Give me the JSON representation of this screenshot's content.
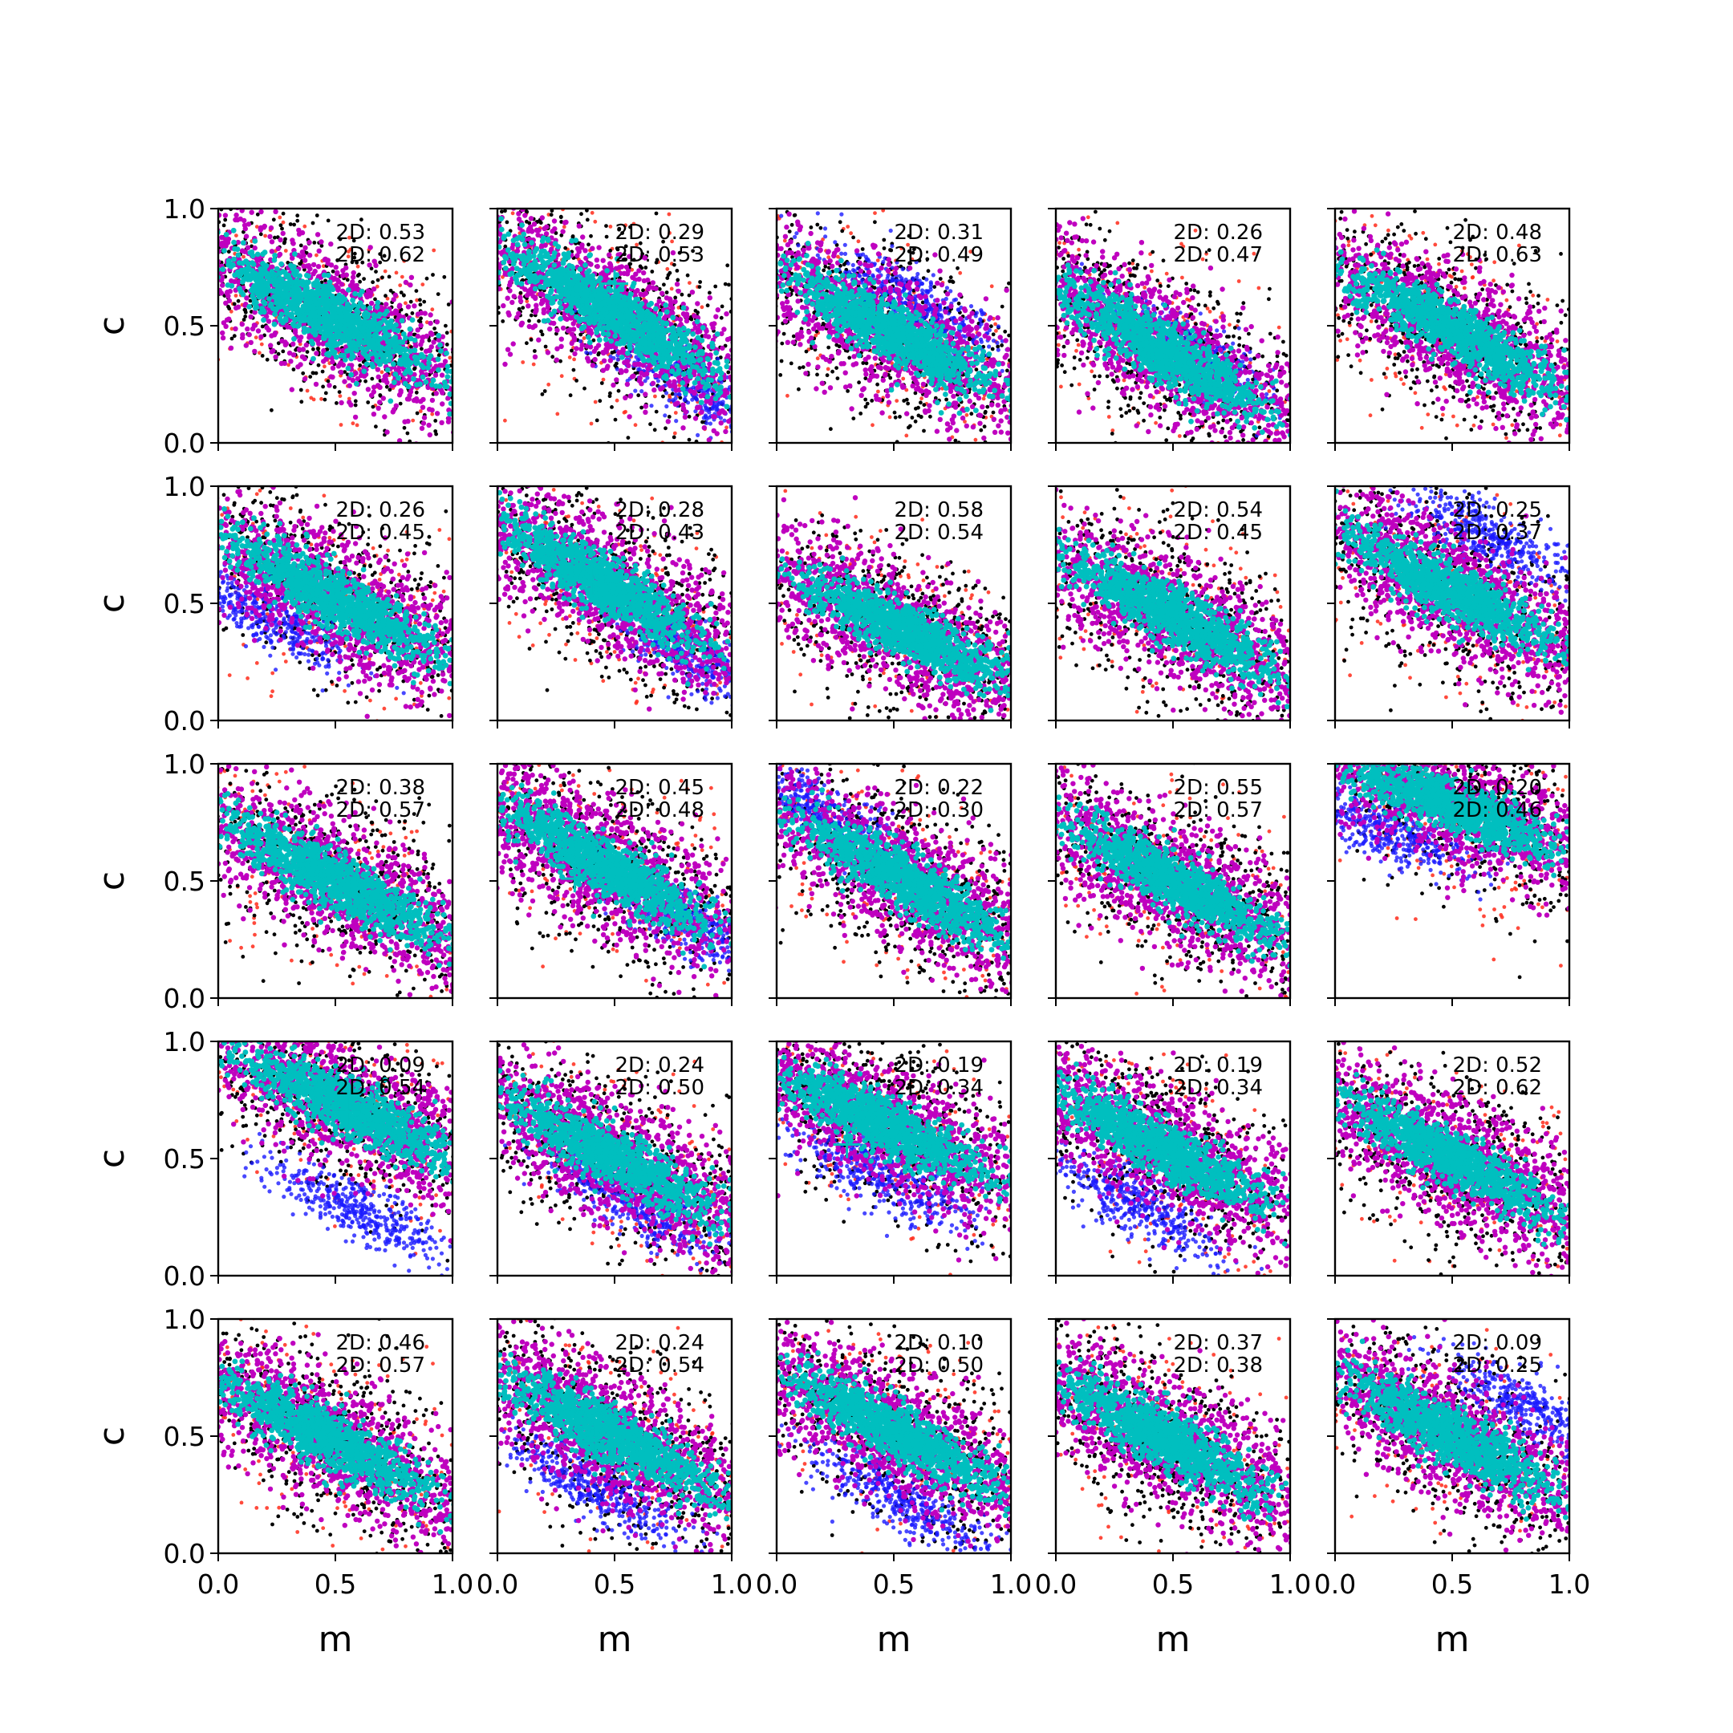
{
  "figure": {
    "xlabel": "m",
    "ylabel": "c",
    "annotation_prefix": "2D: "
  },
  "chart_data": {
    "type": "scatter",
    "grid": false,
    "rows": 5,
    "cols": 5,
    "xlim": [
      0,
      1
    ],
    "ylim": [
      0,
      1
    ],
    "xticks": [
      "0.0",
      "0.5",
      "1.0"
    ],
    "yticks": [
      "0.0",
      "0.5",
      "1.0"
    ],
    "colors": {
      "black": "#000000",
      "red": "#ff2a1a",
      "blue": "#1a1aff",
      "magenta": "#bf00bf",
      "cyan": "#00bfbf"
    },
    "panels": [
      {
        "ann": [
          "0.53",
          "0.62"
        ],
        "center": [
          0.45,
          0.55
        ],
        "slope": -0.55,
        "blue": null,
        "marker": null
      },
      {
        "ann": [
          "0.29",
          "0.53"
        ],
        "center": [
          0.5,
          0.55
        ],
        "slope": -0.6,
        "blue": [
          0.82,
          0.25
        ],
        "marker": [
          0.5,
          0.68
        ]
      },
      {
        "ann": [
          "0.31",
          "0.49"
        ],
        "center": [
          0.5,
          0.47
        ],
        "slope": -0.55,
        "blue": [
          0.6,
          0.58
        ],
        "marker": null
      },
      {
        "ann": [
          "0.26",
          "0.47"
        ],
        "center": [
          0.45,
          0.4
        ],
        "slope": -0.6,
        "blue": [
          0.55,
          0.4
        ],
        "marker": null
      },
      {
        "ann": [
          "0.48",
          "0.63"
        ],
        "center": [
          0.5,
          0.48
        ],
        "slope": -0.55,
        "blue": null,
        "marker": null
      },
      {
        "ann": [
          "0.26",
          "0.45"
        ],
        "center": [
          0.5,
          0.52
        ],
        "slope": -0.55,
        "blue": [
          0.2,
          0.45
        ],
        "marker": [
          0.48,
          0.57
        ]
      },
      {
        "ann": [
          "0.28",
          "0.43"
        ],
        "center": [
          0.45,
          0.58
        ],
        "slope": -0.6,
        "blue": [
          0.8,
          0.3
        ],
        "marker": [
          0.4,
          0.59
        ]
      },
      {
        "ann": [
          "0.58",
          "0.54"
        ],
        "center": [
          0.55,
          0.38
        ],
        "slope": -0.5,
        "blue": null,
        "marker": null
      },
      {
        "ann": [
          "0.54",
          "0.45"
        ],
        "center": [
          0.5,
          0.45
        ],
        "slope": -0.55,
        "blue": null,
        "marker": null
      },
      {
        "ann": [
          "0.25",
          "0.37"
        ],
        "center": [
          0.5,
          0.55
        ],
        "slope": -0.55,
        "blue": [
          0.65,
          0.78
        ],
        "marker": null
      },
      {
        "ann": [
          "0.38",
          "0.57"
        ],
        "center": [
          0.5,
          0.5
        ],
        "slope": -0.55,
        "blue": null,
        "marker": null
      },
      {
        "ann": [
          "0.45",
          "0.48"
        ],
        "center": [
          0.45,
          0.57
        ],
        "slope": -0.6,
        "blue": [
          0.8,
          0.33
        ],
        "marker": [
          0.33,
          0.51
        ]
      },
      {
        "ann": [
          "0.22",
          "0.30"
        ],
        "center": [
          0.55,
          0.5
        ],
        "slope": -0.6,
        "blue": [
          0.15,
          0.82
        ],
        "marker": [
          0.64,
          0.4
        ]
      },
      {
        "ann": [
          "0.55",
          "0.57"
        ],
        "center": [
          0.5,
          0.5
        ],
        "slope": -0.55,
        "blue": null,
        "marker": null
      },
      {
        "ann": [
          "0.20",
          "0.46"
        ],
        "center": [
          0.5,
          0.82
        ],
        "slope": -0.4,
        "blue": [
          0.2,
          0.72
        ],
        "marker": null
      },
      {
        "ann": [
          "0.09",
          "0.54"
        ],
        "center": [
          0.55,
          0.72
        ],
        "slope": -0.5,
        "blue": [
          0.6,
          0.28
        ],
        "marker": [
          0.55,
          0.7
        ]
      },
      {
        "ann": [
          "0.24",
          "0.50"
        ],
        "center": [
          0.5,
          0.5
        ],
        "slope": -0.55,
        "blue": [
          0.6,
          0.3
        ],
        "marker": null
      },
      {
        "ann": [
          "0.19",
          "0.34"
        ],
        "center": [
          0.45,
          0.65
        ],
        "slope": -0.5,
        "blue": [
          0.45,
          0.42
        ],
        "marker": [
          0.3,
          0.56
        ]
      },
      {
        "ann": [
          "0.19",
          "0.34"
        ],
        "center": [
          0.45,
          0.55
        ],
        "slope": -0.55,
        "blue": [
          0.35,
          0.3
        ],
        "marker": [
          0.53,
          0.43
        ]
      },
      {
        "ann": [
          "0.52",
          "0.62"
        ],
        "center": [
          0.5,
          0.5
        ],
        "slope": -0.55,
        "blue": null,
        "marker": null
      },
      {
        "ann": [
          "0.46",
          "0.57"
        ],
        "center": [
          0.45,
          0.5
        ],
        "slope": -0.55,
        "blue": null,
        "marker": null
      },
      {
        "ann": [
          "0.24",
          "0.54"
        ],
        "center": [
          0.5,
          0.5
        ],
        "slope": -0.55,
        "blue": [
          0.42,
          0.28
        ],
        "marker": [
          0.42,
          0.48
        ]
      },
      {
        "ann": [
          "0.10",
          "0.50"
        ],
        "center": [
          0.5,
          0.52
        ],
        "slope": -0.55,
        "blue": [
          0.55,
          0.22
        ],
        "marker": null
      },
      {
        "ann": [
          "0.37",
          "0.38"
        ],
        "center": [
          0.45,
          0.5
        ],
        "slope": -0.55,
        "blue": null,
        "marker": null
      },
      {
        "ann": [
          "0.09",
          "0.25"
        ],
        "center": [
          0.5,
          0.5
        ],
        "slope": -0.55,
        "blue": [
          0.85,
          0.62
        ],
        "marker": null
      }
    ]
  }
}
